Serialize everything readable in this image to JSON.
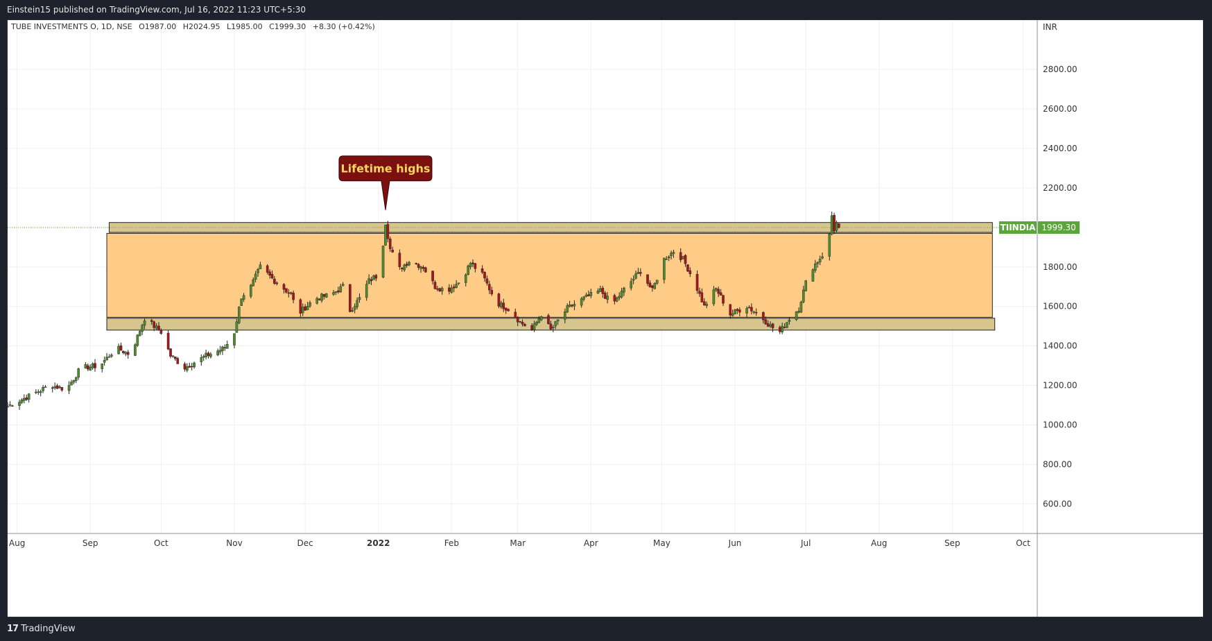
{
  "header": {
    "publisher_line": "Einstein15 published on TradingView.com, Jul 16, 2022 11:23 UTC+5:30"
  },
  "footer": {
    "logo_mark": "17",
    "logo_text": "TradingView"
  },
  "legend": {
    "symbol": "TUBE INVESTMENTS O, 1D, NSE",
    "open": "O1987.00",
    "high": "H2024.95",
    "low": "L1985.00",
    "close": "C1999.30",
    "change": "+8.30 (+0.42%)"
  },
  "price_scale": {
    "currency": "INR",
    "ticks": [
      "2800.00",
      "2600.00",
      "2400.00",
      "2200.00",
      "1800.00",
      "1600.00",
      "1400.00",
      "1200.00",
      "1000.00",
      "800.00",
      "600.00"
    ],
    "last_ticker": "TIINDIA",
    "last_price": "1999.30"
  },
  "time_scale": {
    "labels": [
      "Aug",
      "Sep",
      "Oct",
      "Nov",
      "Dec",
      "2022",
      "Feb",
      "Mar",
      "Apr",
      "May",
      "Jun",
      "Jul",
      "Aug",
      "Sep",
      "Oct"
    ]
  },
  "annotation": {
    "text": "Lifetime highs"
  },
  "colors": {
    "up": "#4f8a2e",
    "down": "#a3171f",
    "zone_fill": "#ffcc88",
    "band_fill": "#d7c58e",
    "callout_bg": "#7a1010",
    "callout_text": "#ffd75e",
    "price_label_bg": "#5aa63a",
    "grid": "#eef0f3",
    "axis_text": "#333333"
  },
  "chart_data": {
    "type": "candlestick",
    "title": "TUBE INVESTMENTS O, 1D, NSE",
    "currency": "INR",
    "ylim": [
      450,
      3050
    ],
    "yticks": [
      600,
      800,
      1000,
      1200,
      1400,
      1600,
      1800,
      2000,
      2200,
      2400,
      2600,
      2800
    ],
    "x_range": [
      "2021-07-28",
      "2022-10-07"
    ],
    "x_ticks": [
      {
        "date": "2021-08-01",
        "label": "Aug"
      },
      {
        "date": "2021-09-01",
        "label": "Sep"
      },
      {
        "date": "2021-10-01",
        "label": "Oct"
      },
      {
        "date": "2021-11-01",
        "label": "Nov"
      },
      {
        "date": "2021-12-01",
        "label": "Dec"
      },
      {
        "date": "2022-01-01",
        "label": "2022"
      },
      {
        "date": "2022-02-01",
        "label": "Feb"
      },
      {
        "date": "2022-03-01",
        "label": "Mar"
      },
      {
        "date": "2022-04-01",
        "label": "Apr"
      },
      {
        "date": "2022-05-01",
        "label": "May"
      },
      {
        "date": "2022-06-01",
        "label": "Jun"
      },
      {
        "date": "2022-07-01",
        "label": "Jul"
      },
      {
        "date": "2022-08-01",
        "label": "Aug"
      },
      {
        "date": "2022-09-01",
        "label": "Sep"
      },
      {
        "date": "2022-10-01",
        "label": "Oct"
      }
    ],
    "price_path": [
      {
        "date": "2021-07-28",
        "close": 1095
      },
      {
        "date": "2021-08-05",
        "close": 1140
      },
      {
        "date": "2021-08-15",
        "close": 1200
      },
      {
        "date": "2021-08-22",
        "close": 1180
      },
      {
        "date": "2021-08-28",
        "close": 1290
      },
      {
        "date": "2021-09-05",
        "close": 1300
      },
      {
        "date": "2021-09-12",
        "close": 1390
      },
      {
        "date": "2021-09-18",
        "close": 1355
      },
      {
        "date": "2021-09-24",
        "close": 1540
      },
      {
        "date": "2021-10-01",
        "close": 1470
      },
      {
        "date": "2021-10-05",
        "close": 1350
      },
      {
        "date": "2021-10-11",
        "close": 1290
      },
      {
        "date": "2021-10-20",
        "close": 1350
      },
      {
        "date": "2021-10-28",
        "close": 1390
      },
      {
        "date": "2021-11-01",
        "close": 1470
      },
      {
        "date": "2021-11-04",
        "close": 1650
      },
      {
        "date": "2021-11-08",
        "close": 1700
      },
      {
        "date": "2021-11-12",
        "close": 1800
      },
      {
        "date": "2021-11-18",
        "close": 1730
      },
      {
        "date": "2021-11-25",
        "close": 1660
      },
      {
        "date": "2021-11-28",
        "close": 1560
      },
      {
        "date": "2021-12-05",
        "close": 1640
      },
      {
        "date": "2021-12-12",
        "close": 1660
      },
      {
        "date": "2021-12-17",
        "close": 1700
      },
      {
        "date": "2021-12-20",
        "close": 1580
      },
      {
        "date": "2021-12-24",
        "close": 1640
      },
      {
        "date": "2021-12-28",
        "close": 1730
      },
      {
        "date": "2022-01-01",
        "close": 1760
      },
      {
        "date": "2022-01-03",
        "close": 1920
      },
      {
        "date": "2022-01-04",
        "close": 2024
      },
      {
        "date": "2022-01-06",
        "close": 1890
      },
      {
        "date": "2022-01-10",
        "close": 1790
      },
      {
        "date": "2022-01-14",
        "close": 1830
      },
      {
        "date": "2022-01-20",
        "close": 1800
      },
      {
        "date": "2022-01-25",
        "close": 1700
      },
      {
        "date": "2022-01-30",
        "close": 1680
      },
      {
        "date": "2022-02-05",
        "close": 1730
      },
      {
        "date": "2022-02-09",
        "close": 1820
      },
      {
        "date": "2022-02-14",
        "close": 1760
      },
      {
        "date": "2022-02-20",
        "close": 1620
      },
      {
        "date": "2022-02-26",
        "close": 1580
      },
      {
        "date": "2022-03-02",
        "close": 1520
      },
      {
        "date": "2022-03-07",
        "close": 1480
      },
      {
        "date": "2022-03-11",
        "close": 1560
      },
      {
        "date": "2022-03-15",
        "close": 1480
      },
      {
        "date": "2022-03-22",
        "close": 1590
      },
      {
        "date": "2022-03-29",
        "close": 1640
      },
      {
        "date": "2022-04-05",
        "close": 1680
      },
      {
        "date": "2022-04-10",
        "close": 1610
      },
      {
        "date": "2022-04-16",
        "close": 1700
      },
      {
        "date": "2022-04-22",
        "close": 1780
      },
      {
        "date": "2022-04-27",
        "close": 1680
      },
      {
        "date": "2022-05-02",
        "close": 1840
      },
      {
        "date": "2022-05-06",
        "close": 1880
      },
      {
        "date": "2022-05-10",
        "close": 1840
      },
      {
        "date": "2022-05-15",
        "close": 1720
      },
      {
        "date": "2022-05-19",
        "close": 1600
      },
      {
        "date": "2022-05-24",
        "close": 1690
      },
      {
        "date": "2022-05-30",
        "close": 1560
      },
      {
        "date": "2022-06-06",
        "close": 1600
      },
      {
        "date": "2022-06-11",
        "close": 1560
      },
      {
        "date": "2022-06-16",
        "close": 1500
      },
      {
        "date": "2022-06-20",
        "close": 1470
      },
      {
        "date": "2022-06-24",
        "close": 1540
      },
      {
        "date": "2022-06-28",
        "close": 1590
      },
      {
        "date": "2022-07-01",
        "close": 1720
      },
      {
        "date": "2022-07-04",
        "close": 1800
      },
      {
        "date": "2022-07-08",
        "close": 1860
      },
      {
        "date": "2022-07-11",
        "close": 1960
      },
      {
        "date": "2022-07-12",
        "close": 2060
      },
      {
        "date": "2022-07-13",
        "close": 1990
      },
      {
        "date": "2022-07-14",
        "close": 2020
      },
      {
        "date": "2022-07-15",
        "close": 1999.3
      }
    ],
    "zones": [
      {
        "type": "band",
        "from": 1975,
        "to": 2025,
        "date_start": "2021-09-09",
        "date_end": "2022-09-18"
      },
      {
        "type": "range",
        "from": 1545,
        "to": 1970,
        "date_start": "2021-09-08",
        "date_end": "2022-09-18"
      },
      {
        "type": "band",
        "from": 1480,
        "to": 1540,
        "date_start": "2021-09-08",
        "date_end": "2022-09-19"
      }
    ],
    "annotations": [
      {
        "text": "Lifetime highs",
        "date": "2022-01-04",
        "price": 2024.95
      }
    ],
    "last_price": 1999.3,
    "grid": true
  }
}
